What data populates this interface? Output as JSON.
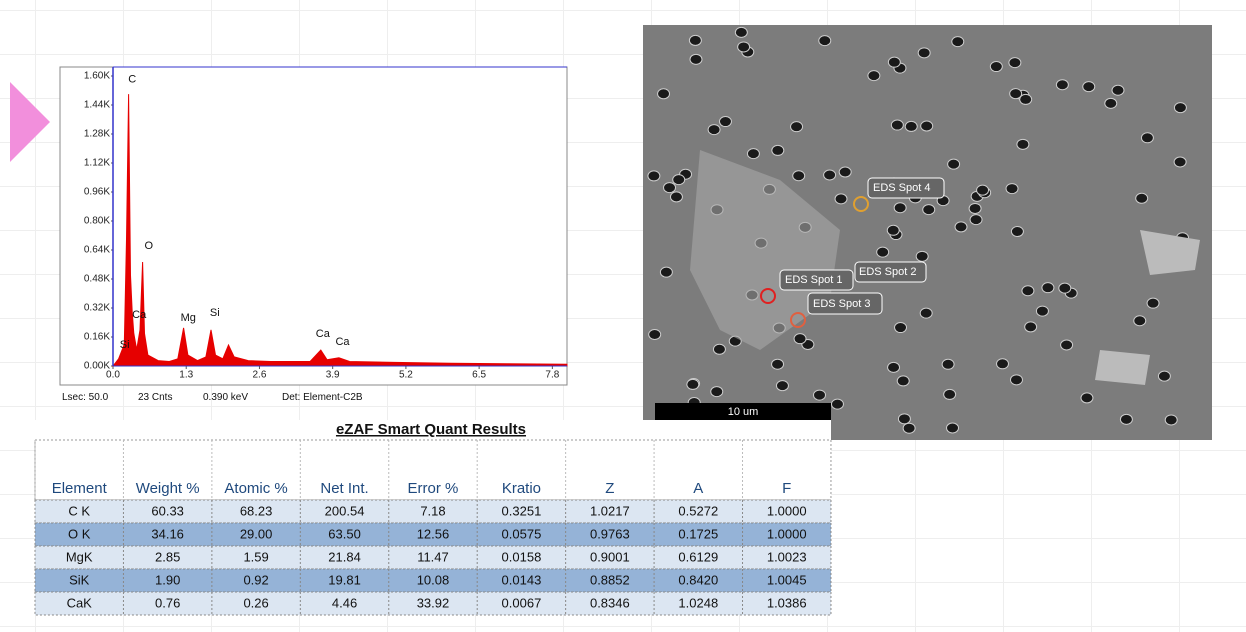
{
  "chart_data": {
    "type": "area",
    "color": "#e60000",
    "x": [
      0,
      0.1,
      0.2,
      0.24,
      0.277,
      0.31,
      0.34,
      0.37,
      0.42,
      0.48,
      0.525,
      0.56,
      0.62,
      0.8,
      1.0,
      1.15,
      1.253,
      1.33,
      1.5,
      1.65,
      1.74,
      1.82,
      1.95,
      2.05,
      2.15,
      2.4,
      2.8,
      3.2,
      3.5,
      3.69,
      3.8,
      4.01,
      4.2,
      5.0,
      6.0,
      7.0,
      8.06
    ],
    "values": [
      0,
      40,
      120,
      700,
      1500,
      500,
      300,
      180,
      90,
      200,
      574,
      180,
      60,
      30,
      25,
      40,
      210,
      60,
      30,
      50,
      200,
      60,
      40,
      116,
      50,
      30,
      25,
      25,
      25,
      88,
      35,
      45,
      25,
      20,
      15,
      12,
      10
    ],
    "xlim": [
      0,
      8.06
    ],
    "ylim": [
      0,
      1600
    ],
    "xticks": [
      {
        "value": 0,
        "label": "0.0"
      },
      1.3,
      2.6,
      3.9,
      5.2,
      6.5,
      7.8
    ],
    "yticks": [
      {
        "value": 0,
        "label": "0.00K"
      },
      {
        "value": 160,
        "label": "0.16K"
      },
      {
        "value": 320,
        "label": "0.32K"
      },
      {
        "value": 480,
        "label": "0.48K"
      },
      {
        "value": 640,
        "label": "0.64K"
      },
      {
        "value": 800,
        "label": "0.80K"
      },
      {
        "value": 960,
        "label": "0.96K"
      },
      {
        "value": 1120,
        "label": "1.12K"
      },
      {
        "value": 1280,
        "label": "1.28K"
      },
      {
        "value": 1440,
        "label": "1.44K"
      },
      {
        "value": 1600,
        "label": "1.60K"
      }
    ],
    "annotations": [
      {
        "text": "C",
        "x": 0.27,
        "y": 1564
      },
      {
        "text": "O",
        "x": 0.56,
        "y": 646
      },
      {
        "text": "Ca",
        "x": 0.34,
        "y": 265
      },
      {
        "text": "Si",
        "x": 0.12,
        "y": 100
      },
      {
        "text": "Mg",
        "x": 1.2,
        "y": 249
      },
      {
        "text": "Si",
        "x": 1.72,
        "y": 276
      },
      {
        "text": "Ca",
        "x": 3.6,
        "y": 160
      },
      {
        "text": "Ca",
        "x": 3.95,
        "y": 116
      }
    ],
    "footer": [
      "Lsec: 50.0",
      "23 Cnts",
      "0.390 keV",
      "Det: Element-C2B"
    ]
  },
  "image": {
    "spots": [
      "EDS Spot 1",
      "EDS Spot 2",
      "EDS Spot 3",
      "EDS Spot 4"
    ],
    "scale": "10 um"
  },
  "table": {
    "title": "eZAF Smart Quant Results",
    "header": [
      "Element",
      "Weight %",
      "Atomic %",
      "Net Int.",
      "Error %",
      "Kratio",
      "Z",
      "A",
      "F"
    ],
    "rows": [
      [
        "C K",
        "60.33",
        "68.23",
        "200.54",
        "7.18",
        "0.3251",
        "1.0217",
        "0.5272",
        "1.0000"
      ],
      [
        "O K",
        "34.16",
        "29.00",
        "63.50",
        "12.56",
        "0.0575",
        "0.9763",
        "0.1725",
        "1.0000"
      ],
      [
        "MgK",
        "2.85",
        "1.59",
        "21.84",
        "11.47",
        "0.0158",
        "0.9001",
        "0.6129",
        "1.0023"
      ],
      [
        "SiK",
        "1.90",
        "0.92",
        "19.81",
        "10.08",
        "0.0143",
        "0.8852",
        "0.8420",
        "1.0045"
      ],
      [
        "CaK",
        "0.76",
        "0.26",
        "4.46",
        "33.92",
        "0.0067",
        "0.8346",
        "1.0248",
        "1.0386"
      ]
    ]
  }
}
